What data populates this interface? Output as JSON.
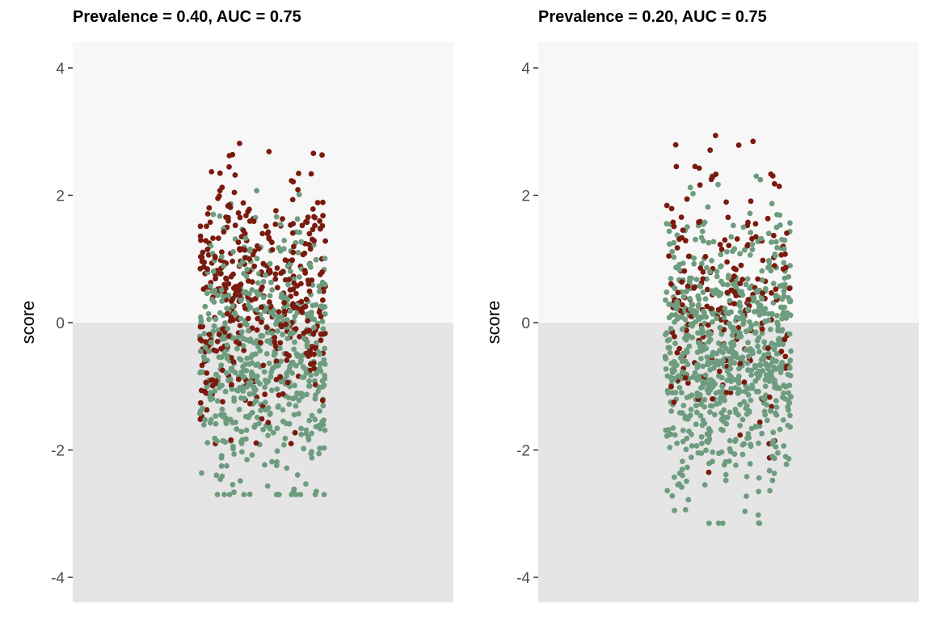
{
  "colors": {
    "positive": "#7a1a0e",
    "negative": "#6e9c7e",
    "bg_upper": "#f7f7f7",
    "bg_lower": "#e5e5e5",
    "tick_text": "#4d4d4d"
  },
  "chart_data": [
    {
      "type": "scatter",
      "title": "Prevalence = 0.40, AUC = 0.75",
      "ylabel": "score",
      "ylim": [
        -4.4,
        4.4
      ],
      "yticks": [
        4,
        2,
        0,
        -2,
        -4
      ],
      "ytick_labels": [
        "4",
        "2",
        "0",
        "-2",
        "-4"
      ],
      "threshold": 0,
      "background": {
        "above_threshold": "#f7f7f7",
        "below_threshold": "#e5e5e5"
      },
      "n_points": 1000,
      "prevalence": 0.4,
      "auc": 0.75,
      "series": [
        {
          "class": "positive",
          "color": "#7a1a0e",
          "count": 400,
          "mean": 0.48,
          "sd": 1.0,
          "min": -1.9,
          "max": 3.05
        },
        {
          "class": "negative",
          "color": "#6e9c7e",
          "count": 600,
          "mean": -0.48,
          "sd": 1.0,
          "min": -2.7,
          "max": 2.55
        }
      ]
    },
    {
      "type": "scatter",
      "title": "Prevalence = 0.20, AUC = 0.75",
      "ylabel": "score",
      "ylim": [
        -4.4,
        4.4
      ],
      "yticks": [
        4,
        2,
        0,
        -2,
        -4
      ],
      "ytick_labels": [
        "4",
        "2",
        "0",
        "-2",
        "-4"
      ],
      "threshold": 0,
      "background": {
        "above_threshold": "#f7f7f7",
        "below_threshold": "#e5e5e5"
      },
      "n_points": 1000,
      "prevalence": 0.2,
      "auc": 0.75,
      "series": [
        {
          "class": "positive",
          "color": "#7a1a0e",
          "count": 200,
          "mean": 0.48,
          "sd": 1.0,
          "min": -2.35,
          "max": 3.3
        },
        {
          "class": "negative",
          "color": "#6e9c7e",
          "count": 800,
          "mean": -0.48,
          "sd": 1.0,
          "min": -3.15,
          "max": 2.3
        }
      ]
    }
  ]
}
